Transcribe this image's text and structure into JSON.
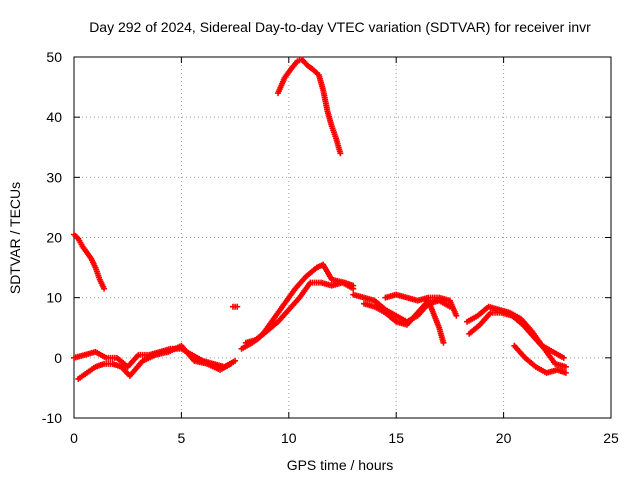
{
  "chart_data": {
    "type": "scatter",
    "title": "Day 292 of 2024, Sidereal Day-to-day VTEC variation (SDTVAR) for receiver invr",
    "xlabel": "GPS time / hours",
    "ylabel": "SDTVAR / TECUs",
    "xlim": [
      0,
      25
    ],
    "ylim": [
      -10,
      50
    ],
    "xticks": [
      "0",
      "5",
      "10",
      "15",
      "20",
      "25"
    ],
    "yticks": [
      "-10",
      "0",
      "10",
      "20",
      "30",
      "40",
      "50"
    ],
    "grid": true,
    "marker": "+",
    "series_color": "#ff0000",
    "series": [
      {
        "name": "trace-high-arc",
        "x": [
          9.5,
          9.8,
          10.1,
          10.4,
          10.6,
          10.9,
          11.1,
          11.4,
          11.6,
          11.8,
          12.0,
          12.2,
          12.4
        ],
        "y": [
          44.0,
          46.5,
          48.0,
          49.3,
          49.6,
          48.5,
          48.0,
          47.0,
          44.5,
          41.0,
          38.5,
          36.5,
          34.0
        ]
      },
      {
        "name": "trace-early-decay",
        "x": [
          0.0,
          0.2,
          0.4,
          0.6,
          0.8,
          1.0,
          1.2,
          1.4
        ],
        "y": [
          20.5,
          19.8,
          18.5,
          17.5,
          16.5,
          15.0,
          13.0,
          11.5
        ]
      },
      {
        "name": "trace-morning-a",
        "x": [
          0.0,
          0.5,
          1.0,
          1.5,
          2.0,
          2.5,
          3.0,
          3.5,
          4.0,
          4.5,
          5.0,
          5.5,
          6.0,
          6.5,
          7.0,
          7.5
        ],
        "y": [
          0.0,
          0.5,
          1.0,
          0.0,
          0.0,
          -1.5,
          0.5,
          0.5,
          1.0,
          1.5,
          1.5,
          0.5,
          -0.5,
          -1.0,
          -1.5,
          -0.5
        ]
      },
      {
        "name": "trace-morning-b",
        "x": [
          0.2,
          0.6,
          1.0,
          1.4,
          1.8,
          2.2,
          2.6,
          3.2,
          3.8,
          4.4,
          5.0,
          5.6,
          6.2,
          6.8,
          7.3
        ],
        "y": [
          -3.5,
          -2.5,
          -1.5,
          -1.0,
          -1.0,
          -1.5,
          -3.0,
          -0.5,
          0.5,
          1.0,
          2.0,
          -0.5,
          -1.0,
          -2.0,
          -1.0
        ]
      },
      {
        "name": "trace-blip",
        "x": [
          7.4,
          7.6
        ],
        "y": [
          8.5,
          8.5
        ]
      },
      {
        "name": "trace-rise-a",
        "x": [
          7.8,
          8.3,
          8.8,
          9.3,
          9.8,
          10.3,
          10.8,
          11.3,
          11.6,
          12.0,
          12.6,
          13.0
        ],
        "y": [
          1.5,
          2.5,
          4.0,
          6.5,
          9.0,
          11.5,
          13.5,
          15.0,
          15.5,
          13.0,
          12.5,
          12.0
        ]
      },
      {
        "name": "trace-rise-b",
        "x": [
          8.0,
          8.5,
          9.0,
          9.5,
          10.0,
          10.5,
          11.0,
          11.5,
          12.0,
          12.5,
          13.0
        ],
        "y": [
          2.5,
          3.0,
          4.5,
          6.0,
          8.0,
          10.0,
          12.5,
          12.5,
          12.0,
          12.5,
          11.5
        ]
      },
      {
        "name": "trace-midday",
        "x": [
          13.0,
          13.5,
          14.0,
          14.5,
          15.0,
          15.5,
          16.0,
          16.5,
          17.0,
          17.5
        ],
        "y": [
          10.5,
          10.0,
          9.5,
          8.0,
          7.0,
          6.0,
          7.0,
          9.0,
          9.5,
          8.5
        ]
      },
      {
        "name": "trace-midday-b",
        "x": [
          13.5,
          14.0,
          14.5,
          15.0,
          15.5,
          16.0,
          16.5,
          17.0,
          17.2
        ],
        "y": [
          9.0,
          8.5,
          7.5,
          6.0,
          5.5,
          7.5,
          9.5,
          5.0,
          2.5
        ]
      },
      {
        "name": "trace-midday-c",
        "x": [
          14.5,
          15.0,
          15.5,
          16.0,
          16.5,
          17.0,
          17.5,
          17.8
        ],
        "y": [
          10.0,
          10.5,
          10.0,
          9.5,
          10.0,
          10.0,
          9.5,
          7.0
        ]
      },
      {
        "name": "trace-evening-a",
        "x": [
          18.3,
          18.8,
          19.3,
          19.8,
          20.3,
          20.8,
          21.3,
          21.8,
          22.3,
          22.8
        ],
        "y": [
          6.0,
          7.0,
          8.5,
          8.0,
          7.5,
          6.5,
          4.5,
          2.0,
          1.0,
          0.0
        ]
      },
      {
        "name": "trace-evening-b",
        "x": [
          18.4,
          18.9,
          19.4,
          19.9,
          20.4,
          20.9,
          21.4,
          21.9,
          22.4,
          22.9
        ],
        "y": [
          4.0,
          5.5,
          7.5,
          7.5,
          7.0,
          5.5,
          3.5,
          1.5,
          -1.0,
          -1.5
        ]
      },
      {
        "name": "trace-evening-c",
        "x": [
          20.5,
          21.0,
          21.5,
          22.0,
          22.5,
          22.9
        ],
        "y": [
          2.0,
          0.0,
          -1.5,
          -2.5,
          -2.0,
          -2.5
        ]
      }
    ]
  }
}
